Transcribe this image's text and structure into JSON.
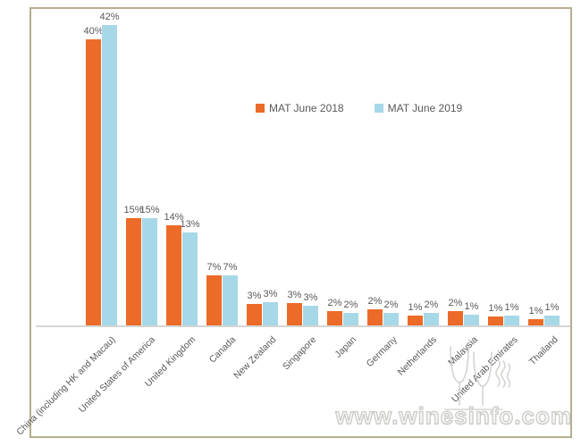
{
  "chart_data": {
    "type": "bar",
    "title": "",
    "xlabel": "",
    "ylabel": "",
    "ylim": [
      0,
      45
    ],
    "grid": false,
    "legend_position": "upper-center",
    "value_label_suffix": "%",
    "categories": [
      "China (including HK and Macau)",
      "United States of America",
      "United Kingdom",
      "Canada",
      "New Zealand",
      "Singapore",
      "Japan",
      "Germany",
      "Netherlands",
      "Malaysia",
      "United Arab Emirates",
      "Thailand"
    ],
    "series": [
      {
        "key": "mat-june-2018",
        "name": "MAT June 2018",
        "color": "#EC6B28",
        "values": [
          40,
          15,
          14,
          7,
          3,
          3,
          2,
          2,
          1,
          2,
          1,
          1
        ],
        "labels": [
          "40%",
          "15%",
          "14%",
          "7%",
          "3%",
          "3%",
          "2%",
          "2%",
          "1%",
          "2%",
          "1%",
          "1%"
        ],
        "display_values": [
          40,
          15,
          14,
          7,
          3,
          3.1,
          2,
          2.2,
          1.4,
          2,
          1.2,
          0.9
        ]
      },
      {
        "key": "mat-june-2019",
        "name": "MAT June 2019",
        "color": "#A7D8E8",
        "values": [
          42,
          15,
          13,
          7,
          3,
          3,
          2,
          2,
          2,
          1,
          1,
          1
        ],
        "labels": [
          "42%",
          "15%",
          "13%",
          "7%",
          "3%",
          "3%",
          "2%",
          "2%",
          "2%",
          "1%",
          "1%",
          "1%"
        ],
        "display_values": [
          42,
          15,
          13,
          7,
          3.2,
          2.8,
          1.8,
          1.8,
          1.8,
          1.5,
          1.4,
          1.4
        ]
      }
    ],
    "axis_color": "#d6d6d6",
    "label_color": "#595959"
  },
  "frame": {
    "border_color": "#b6ae90"
  },
  "watermark": {
    "text": "www.winesinfo.com",
    "logo": "wine-glasses-icon",
    "color": "#cccccc"
  }
}
